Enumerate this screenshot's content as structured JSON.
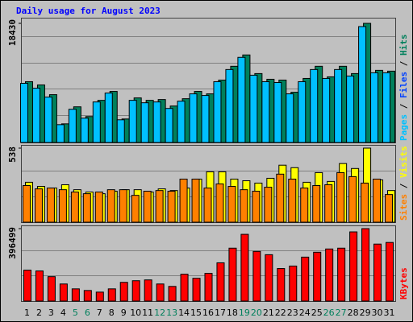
{
  "chart_data": [
    {
      "type": "bar",
      "title": "Daily usage for August 2023",
      "ylim": [
        0,
        18430
      ],
      "yticks": [
        18430
      ],
      "legend_separator": "/",
      "series": [
        {
          "name": "Pages",
          "color": "#00c0ff",
          "values": [
            9154,
            8402,
            7022,
            2759,
            5141,
            3762,
            6270,
            7649,
            3511,
            6521,
            6145,
            6270,
            5267,
            6395,
            7524,
            7273,
            9405,
            11286,
            13167,
            10408,
            9405,
            9280,
            7524,
            9405,
            11286,
            9907,
            11286,
            10283,
            17932,
            10784,
            10784
          ]
        },
        {
          "name": "Files",
          "color": "#0040ff",
          "values": [
            null,
            null,
            null,
            null,
            null,
            null,
            null,
            null,
            null,
            null,
            null,
            null,
            null,
            null,
            null,
            null,
            null,
            null,
            null,
            null,
            null,
            null,
            null,
            null,
            null,
            null,
            null,
            null,
            null,
            null,
            null
          ]
        },
        {
          "name": "Hits",
          "color": "#00805c",
          "values": [
            9405,
            8903,
            7399,
            2884,
            5518,
            4013,
            6521,
            7900,
            3637,
            6897,
            6521,
            6646,
            5643,
            6772,
            7900,
            7524,
            9656,
            11788,
            13543,
            10659,
            9781,
            9656,
            7775,
            9907,
            11788,
            10157,
            11788,
            10659,
            18430,
            11161,
            11035
          ]
        }
      ]
    },
    {
      "type": "bar",
      "ylim": [
        0,
        538
      ],
      "yticks": [
        538
      ],
      "legend_separator": "/",
      "series": [
        {
          "name": "Sites",
          "color": "#ff8000",
          "values": [
            266,
            242,
            248,
            236,
            219,
            207,
            219,
            236,
            236,
            195,
            225,
            230,
            225,
            313,
            313,
            248,
            278,
            260,
            236,
            225,
            254,
            349,
            313,
            248,
            266,
            272,
            360,
            331,
            284,
            313,
            201
          ]
        },
        {
          "name": "Visits",
          "color": "#ffff00",
          "values": [
            290,
            260,
            248,
            272,
            236,
            219,
            207,
            225,
            236,
            236,
            219,
            242,
            230,
            248,
            313,
            366,
            366,
            313,
            301,
            284,
            319,
            414,
            396,
            290,
            360,
            296,
            426,
            390,
            538,
            307,
            230
          ]
        }
      ]
    },
    {
      "type": "bar",
      "ylim": [
        0,
        396499
      ],
      "yticks": [
        396499
      ],
      "categories": [
        "1",
        "2",
        "3",
        "4",
        "5",
        "6",
        "7",
        "8",
        "9",
        "10",
        "11",
        "12",
        "13",
        "14",
        "15",
        "16",
        "17",
        "18",
        "19",
        "20",
        "21",
        "22",
        "23",
        "24",
        "25",
        "26",
        "27",
        "28",
        "29",
        "30",
        "31"
      ],
      "category_colors": [
        "#000000",
        "#000000",
        "#000000",
        "#000000",
        "#00805c",
        "#00805c",
        "#000000",
        "#000000",
        "#000000",
        "#000000",
        "#000000",
        "#00805c",
        "#00805c",
        "#000000",
        "#000000",
        "#000000",
        "#000000",
        "#000000",
        "#00805c",
        "#00805c",
        "#000000",
        "#000000",
        "#000000",
        "#000000",
        "#000000",
        "#00805c",
        "#00805c",
        "#000000",
        "#000000",
        "#000000",
        "#000000"
      ],
      "series": [
        {
          "name": "KBytes",
          "color": "#ff0000",
          "values": [
            169290,
            164835,
            133650,
            93555,
            66825,
            57915,
            49005,
            66825,
            102465,
            111375,
            115830,
            93555,
            80190,
            147015,
            124740,
            151470,
            209385,
            289575,
            365310,
            271755,
            253935,
            178200,
            191565,
            240570,
            267300,
            285120,
            289575,
            378675,
            396499,
            311850,
            320760
          ]
        }
      ]
    }
  ]
}
